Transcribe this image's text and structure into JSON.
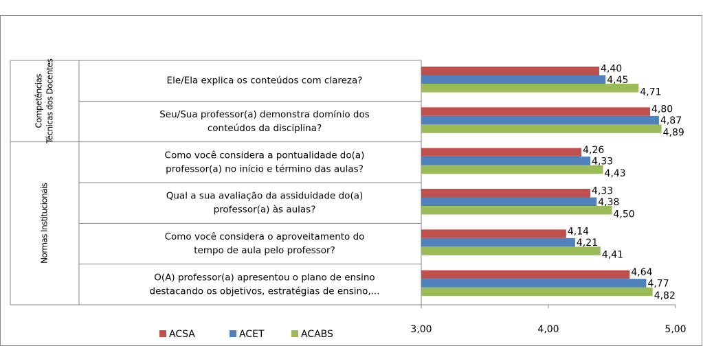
{
  "chart_data": {
    "type": "bar",
    "orientation": "horizontal",
    "categories": [
      [
        "Ele/Ela explica os conteúdos com clareza?"
      ],
      [
        "Seu/Sua professor(a) demonstra domínio dos",
        "conteúdos da disciplina?"
      ],
      [
        "Como você considera a pontualidade do(a)",
        "professor(a) no início e término das aulas?"
      ],
      [
        "Qual a sua avaliação da assiduidade do(a)",
        "professor(a) às aulas?"
      ],
      [
        "Como você considera o aproveitamento do",
        "tempo de aula pelo professor?"
      ],
      [
        "O(A)  professor(a) apresentou o plano de ensino",
        "destacando os objetivos, estratégias de ensino,..."
      ]
    ],
    "groups": [
      {
        "label": [
          "Competências",
          "Técnicas dos Docentes"
        ],
        "count": 2
      },
      {
        "label": [
          "Normas Institucionais"
        ],
        "count": 4
      }
    ],
    "series": [
      {
        "name": "ACSA",
        "color": "#c0504d",
        "values": [
          4.4,
          4.8,
          4.26,
          4.33,
          4.14,
          4.64
        ],
        "value_labels": [
          "4,40",
          "4,80",
          "4,26",
          "4,33",
          "4,14",
          "4,64"
        ]
      },
      {
        "name": "ACET",
        "color": "#4f81bd",
        "values": [
          4.45,
          4.87,
          4.33,
          4.38,
          4.21,
          4.77
        ],
        "value_labels": [
          "4,45",
          "4,87",
          "4,33",
          "4,38",
          "4,21",
          "4,77"
        ]
      },
      {
        "name": "ACABS",
        "color": "#9bbb59",
        "values": [
          4.71,
          4.89,
          4.43,
          4.5,
          4.41,
          4.82
        ],
        "value_labels": [
          "4,71",
          "4,89",
          "4,43",
          "4,50",
          "4,41",
          "4,82"
        ]
      }
    ],
    "xlim": [
      3,
      5
    ],
    "xticks": [
      {
        "value": 3,
        "label": "3,00"
      },
      {
        "value": 4,
        "label": "4,00"
      },
      {
        "value": 5,
        "label": "5,00"
      }
    ],
    "legend": "bottom-left"
  }
}
